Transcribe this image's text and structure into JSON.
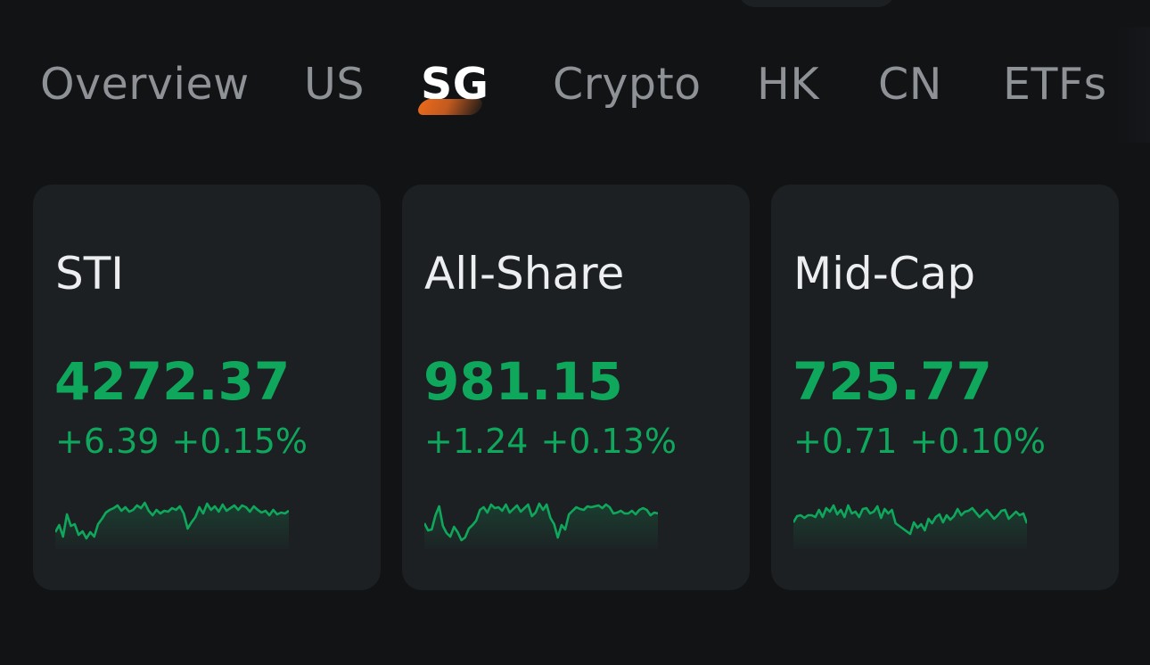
{
  "tabs": [
    {
      "label": "Overview",
      "active": false
    },
    {
      "label": "US",
      "active": false
    },
    {
      "label": "SG",
      "active": true
    },
    {
      "label": "Crypto",
      "active": false
    },
    {
      "label": "HK",
      "active": false
    },
    {
      "label": "CN",
      "active": false
    },
    {
      "label": "ETFs",
      "active": false
    }
  ],
  "colors": {
    "background": "#111315",
    "card": "#1d2023",
    "positive": "#0fa75c",
    "tab_inactive": "#8e9196",
    "tab_active": "#ffffff",
    "accent": "#e8691c"
  },
  "indices": [
    {
      "name": "STI",
      "price": "4272.37",
      "change": "+6.39",
      "change_pct": "+0.15%",
      "sparkline": [
        55,
        47,
        60,
        35,
        48,
        46,
        58,
        54,
        62,
        55,
        60,
        46,
        40,
        33,
        30,
        28,
        25,
        31,
        27,
        32,
        30,
        25,
        28,
        22,
        31,
        36,
        30,
        34,
        31,
        32,
        28,
        30,
        26,
        34,
        51,
        44,
        38,
        27,
        34,
        23,
        30,
        26,
        32,
        24,
        31,
        28,
        25,
        30,
        25,
        27,
        32,
        26,
        30,
        33,
        31,
        36,
        30,
        35,
        33,
        34,
        31
      ]
    },
    {
      "name": "All-Share",
      "price": "981.15",
      "change": "+1.24",
      "change_pct": "+0.13%",
      "sparkline": [
        45,
        53,
        52,
        36,
        26,
        48,
        56,
        60,
        49,
        55,
        64,
        61,
        51,
        47,
        42,
        30,
        27,
        33,
        24,
        28,
        27,
        31,
        24,
        33,
        29,
        25,
        32,
        28,
        24,
        37,
        33,
        23,
        30,
        24,
        39,
        46,
        61,
        47,
        52,
        35,
        31,
        27,
        29,
        30,
        26,
        27,
        26,
        25,
        28,
        24,
        27,
        34,
        33,
        31,
        34,
        34,
        31,
        35,
        30,
        28,
        30,
        36,
        33,
        34
      ]
    },
    {
      "name": "Mid-Cap",
      "price": "725.77",
      "change": "+0.71",
      "change_pct": "+0.10%",
      "sparkline": [
        44,
        37,
        36,
        39,
        36,
        36,
        38,
        30,
        38,
        28,
        32,
        25,
        35,
        30,
        38,
        25,
        34,
        32,
        38,
        29,
        28,
        34,
        32,
        26,
        39,
        29,
        34,
        30,
        45,
        48,
        51,
        54,
        57,
        44,
        50,
        46,
        53,
        40,
        45,
        38,
        35,
        44,
        36,
        41,
        37,
        29,
        36,
        32,
        31,
        28,
        33,
        38,
        34,
        30,
        35,
        40,
        36,
        31,
        30,
        40,
        36,
        32,
        36,
        34,
        45
      ]
    }
  ]
}
